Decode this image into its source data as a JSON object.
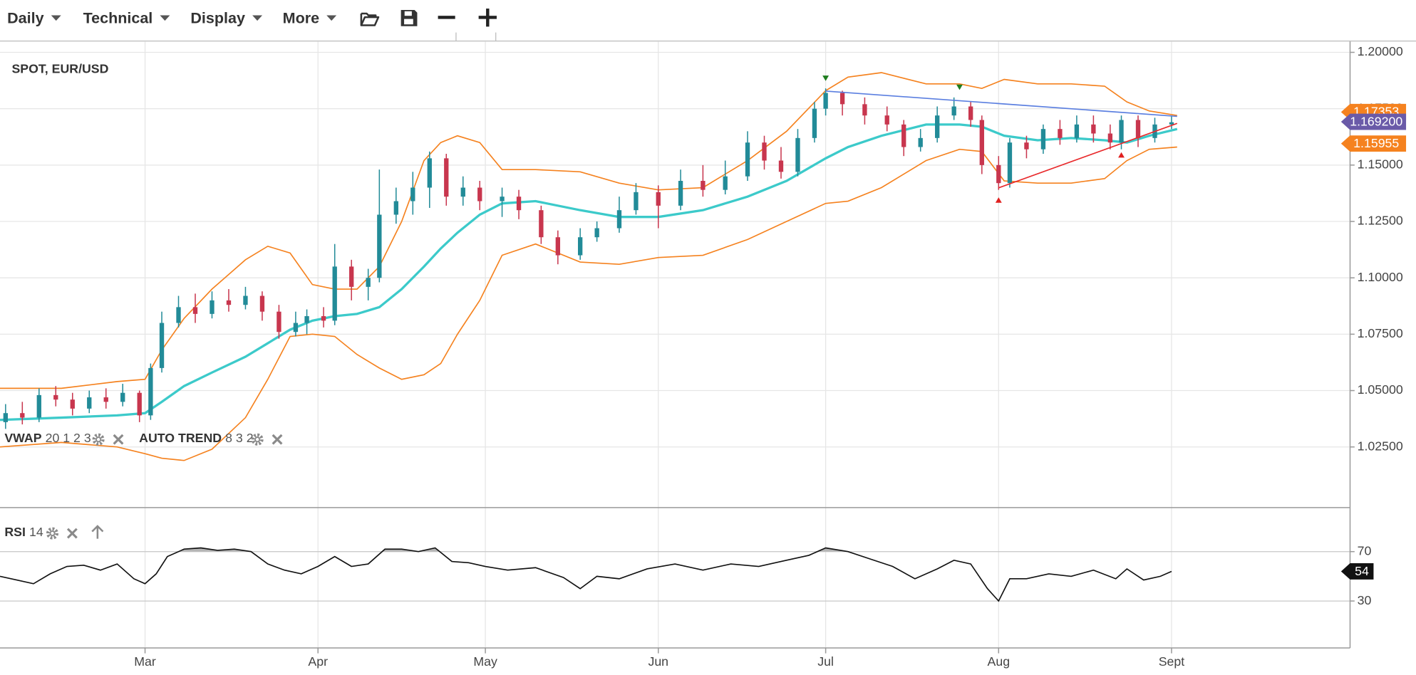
{
  "toolbar": {
    "menus": [
      "Daily",
      "Technical",
      "Display",
      "More"
    ]
  },
  "chart_data": [
    {
      "type": "candlestick",
      "title": "SPOT, EUR/USD",
      "up_color": "#228b98",
      "down_color": "#c8364e",
      "xlim": [
        34,
        276
      ],
      "xticks": [
        {
          "value": 60,
          "label": "Mar"
        },
        {
          "value": 91,
          "label": "Apr"
        },
        {
          "value": 121,
          "label": "May"
        },
        {
          "value": 152,
          "label": "Jun"
        },
        {
          "value": 182,
          "label": "Jul"
        },
        {
          "value": 213,
          "label": "Aug"
        },
        {
          "value": 244,
          "label": "Sept"
        }
      ],
      "ylim": [
        0.9983,
        1.2048
      ],
      "yticks": [
        {
          "value": 1.2,
          "label": "1.20000"
        },
        {
          "value": 1.175,
          "label": "1.17500"
        },
        {
          "value": 1.15,
          "label": "1.15000"
        },
        {
          "value": 1.125,
          "label": "1.12500"
        },
        {
          "value": 1.1,
          "label": "1.10000"
        },
        {
          "value": 1.075,
          "label": "1.07500"
        },
        {
          "value": 1.05,
          "label": "1.05000"
        },
        {
          "value": 1.025,
          "label": "1.02500"
        }
      ],
      "grid": true,
      "x": [
        35,
        38,
        41,
        44,
        47,
        50,
        53,
        56,
        59,
        61,
        63,
        66,
        69,
        72,
        75,
        78,
        81,
        84,
        87,
        89,
        92,
        94,
        97,
        100,
        102,
        105,
        108,
        111,
        114,
        117,
        120,
        124,
        127,
        131,
        134,
        138,
        141,
        145,
        148,
        152,
        156,
        160,
        164,
        168,
        171,
        174,
        177,
        180,
        182,
        185,
        189,
        193,
        196,
        199,
        202,
        205,
        208,
        210,
        213,
        215,
        218,
        221,
        224,
        227,
        230,
        233,
        235,
        238,
        241,
        244
      ],
      "open": [
        1.036,
        1.04,
        1.038,
        1.048,
        1.046,
        1.042,
        1.047,
        1.045,
        1.049,
        1.039,
        1.06,
        1.08,
        1.087,
        1.084,
        1.09,
        1.088,
        1.092,
        1.085,
        1.076,
        1.08,
        1.083,
        1.081,
        1.105,
        1.096,
        1.1,
        1.128,
        1.134,
        1.14,
        1.153,
        1.136,
        1.14,
        1.134,
        1.136,
        1.13,
        1.118,
        1.11,
        1.118,
        1.122,
        1.13,
        1.138,
        1.132,
        1.143,
        1.139,
        1.145,
        1.16,
        1.152,
        1.147,
        1.162,
        1.175,
        1.182,
        1.177,
        1.172,
        1.168,
        1.158,
        1.162,
        1.172,
        1.176,
        1.17,
        1.15,
        1.142,
        1.16,
        1.157,
        1.166,
        1.162,
        1.168,
        1.164,
        1.16,
        1.17,
        1.162,
        1.168
      ],
      "high": [
        1.044,
        1.045,
        1.051,
        1.052,
        1.049,
        1.05,
        1.051,
        1.053,
        1.05,
        1.062,
        1.085,
        1.092,
        1.093,
        1.094,
        1.095,
        1.096,
        1.094,
        1.088,
        1.085,
        1.086,
        1.087,
        1.115,
        1.108,
        1.104,
        1.148,
        1.14,
        1.147,
        1.156,
        1.155,
        1.145,
        1.143,
        1.14,
        1.139,
        1.132,
        1.121,
        1.122,
        1.125,
        1.136,
        1.142,
        1.141,
        1.148,
        1.15,
        1.152,
        1.165,
        1.163,
        1.158,
        1.166,
        1.178,
        1.184,
        1.183,
        1.18,
        1.176,
        1.17,
        1.166,
        1.176,
        1.18,
        1.178,
        1.172,
        1.154,
        1.162,
        1.163,
        1.168,
        1.17,
        1.172,
        1.172,
        1.168,
        1.172,
        1.172,
        1.171,
        1.172
      ],
      "low": [
        1.033,
        1.035,
        1.036,
        1.043,
        1.039,
        1.04,
        1.042,
        1.043,
        1.036,
        1.037,
        1.058,
        1.078,
        1.08,
        1.082,
        1.085,
        1.086,
        1.081,
        1.073,
        1.074,
        1.075,
        1.078,
        1.079,
        1.09,
        1.09,
        1.098,
        1.124,
        1.128,
        1.131,
        1.132,
        1.132,
        1.13,
        1.127,
        1.126,
        1.115,
        1.106,
        1.108,
        1.116,
        1.12,
        1.128,
        1.122,
        1.13,
        1.136,
        1.137,
        1.143,
        1.148,
        1.144,
        1.145,
        1.16,
        1.172,
        1.172,
        1.168,
        1.165,
        1.154,
        1.156,
        1.16,
        1.17,
        1.167,
        1.146,
        1.139,
        1.14,
        1.153,
        1.155,
        1.159,
        1.16,
        1.16,
        1.157,
        1.157,
        1.158,
        1.16,
        1.166
      ],
      "close": [
        1.04,
        1.038,
        1.048,
        1.046,
        1.042,
        1.047,
        1.045,
        1.049,
        1.039,
        1.06,
        1.08,
        1.087,
        1.084,
        1.09,
        1.088,
        1.092,
        1.085,
        1.076,
        1.08,
        1.083,
        1.081,
        1.105,
        1.096,
        1.1,
        1.128,
        1.134,
        1.14,
        1.153,
        1.136,
        1.14,
        1.134,
        1.136,
        1.13,
        1.118,
        1.11,
        1.118,
        1.122,
        1.13,
        1.138,
        1.132,
        1.143,
        1.139,
        1.145,
        1.16,
        1.152,
        1.147,
        1.162,
        1.175,
        1.182,
        1.177,
        1.172,
        1.168,
        1.158,
        1.162,
        1.172,
        1.176,
        1.17,
        1.15,
        1.142,
        1.16,
        1.157,
        1.166,
        1.162,
        1.168,
        1.164,
        1.16,
        1.17,
        1.162,
        1.168,
        1.169
      ],
      "overlays": [
        {
          "color": "#f5821f",
          "width": 1.3,
          "x": [
            34,
            45,
            55,
            60,
            63,
            67,
            72,
            78,
            82,
            86,
            90,
            94,
            98,
            102,
            106,
            110,
            113,
            116,
            120,
            124,
            130,
            138,
            145,
            152,
            160,
            168,
            175,
            182,
            186,
            192,
            200,
            206,
            210,
            214,
            220,
            226,
            232,
            236,
            240,
            245
          ],
          "values": [
            1.051,
            1.051,
            1.054,
            1.055,
            1.068,
            1.082,
            1.095,
            1.108,
            1.114,
            1.111,
            1.097,
            1.095,
            1.095,
            1.105,
            1.125,
            1.152,
            1.16,
            1.163,
            1.16,
            1.148,
            1.148,
            1.147,
            1.142,
            1.139,
            1.14,
            1.152,
            1.165,
            1.183,
            1.189,
            1.191,
            1.186,
            1.186,
            1.184,
            1.188,
            1.186,
            1.186,
            1.185,
            1.178,
            1.174,
            1.172
          ]
        },
        {
          "color": "#3ccaca",
          "width": 2.6,
          "x": [
            34,
            45,
            55,
            60,
            63,
            67,
            72,
            78,
            82,
            86,
            90,
            94,
            98,
            102,
            106,
            110,
            113,
            116,
            120,
            124,
            130,
            138,
            145,
            152,
            160,
            168,
            175,
            182,
            186,
            192,
            200,
            206,
            210,
            214,
            220,
            226,
            232,
            236,
            240,
            245
          ],
          "values": [
            1.037,
            1.038,
            1.039,
            1.04,
            1.045,
            1.052,
            1.058,
            1.065,
            1.071,
            1.077,
            1.081,
            1.083,
            1.084,
            1.087,
            1.095,
            1.105,
            1.113,
            1.12,
            1.128,
            1.133,
            1.134,
            1.13,
            1.127,
            1.127,
            1.13,
            1.136,
            1.143,
            1.153,
            1.158,
            1.163,
            1.168,
            1.168,
            1.167,
            1.163,
            1.161,
            1.162,
            1.161,
            1.16,
            1.163,
            1.166
          ]
        },
        {
          "color": "#f5821f",
          "width": 1.3,
          "x": [
            34,
            45,
            55,
            60,
            63,
            67,
            72,
            78,
            82,
            86,
            90,
            94,
            98,
            102,
            106,
            110,
            113,
            116,
            120,
            124,
            130,
            138,
            145,
            152,
            160,
            168,
            175,
            182,
            186,
            192,
            200,
            206,
            210,
            214,
            220,
            226,
            232,
            236,
            240,
            245
          ],
          "values": [
            1.025,
            1.027,
            1.025,
            1.022,
            1.02,
            1.019,
            1.024,
            1.038,
            1.055,
            1.074,
            1.075,
            1.074,
            1.066,
            1.06,
            1.055,
            1.057,
            1.062,
            1.075,
            1.09,
            1.11,
            1.115,
            1.107,
            1.106,
            1.109,
            1.11,
            1.117,
            1.125,
            1.133,
            1.134,
            1.14,
            1.152,
            1.157,
            1.156,
            1.143,
            1.142,
            1.142,
            1.144,
            1.152,
            1.157,
            1.158
          ]
        }
      ],
      "trend_lines": [
        {
          "color": "#5b7fe0",
          "x": [
            182,
            245
          ],
          "values": [
            1.1828,
            1.1716
          ]
        },
        {
          "color": "#e8292b",
          "x": [
            213,
            245
          ],
          "values": [
            1.1399,
            1.1685
          ]
        }
      ],
      "signals": [
        {
          "x": 182,
          "value": 1.1885,
          "direction": "down",
          "color": "#1e7d1e"
        },
        {
          "x": 206,
          "value": 1.1845,
          "direction": "down",
          "color": "#1e7d1e"
        },
        {
          "x": 213,
          "value": 1.1345,
          "direction": "up",
          "color": "#e0201f"
        },
        {
          "x": 235,
          "value": 1.1545,
          "direction": "up",
          "color": "#e0201f"
        }
      ],
      "price_labels": [
        {
          "value": 1.17353,
          "label": "1.17353",
          "color": "#f5821f"
        },
        {
          "value": 1.15955,
          "label": "1.15955",
          "color": "#f5821f"
        },
        {
          "value": 1.1692,
          "label": "1.169200",
          "color": "#6a5aa8"
        }
      ],
      "indicators": [
        {
          "name": "VWAP",
          "params": "20 1 2 3"
        },
        {
          "name": "AUTO TREND",
          "params": "8 3 2"
        }
      ]
    },
    {
      "type": "line",
      "title": "RSI",
      "params": "14",
      "color": "#111111",
      "fill_color": "#b5b5b5",
      "ylim": [
        -8,
        106
      ],
      "yticks": [
        70,
        30
      ],
      "overbought": 70,
      "x": [
        34,
        37,
        40,
        43,
        46,
        49,
        52,
        55,
        58,
        60,
        62,
        64,
        67,
        70,
        73,
        76,
        79,
        82,
        85,
        88,
        91,
        94,
        97,
        100,
        103,
        106,
        109,
        112,
        115,
        118,
        121,
        125,
        130,
        135,
        138,
        141,
        145,
        150,
        155,
        160,
        165,
        170,
        175,
        179,
        182,
        186,
        190,
        194,
        198,
        202,
        205,
        208,
        211,
        213,
        215,
        218,
        222,
        226,
        230,
        234,
        236,
        239,
        242,
        244
      ],
      "values": [
        50,
        47,
        44,
        52,
        58,
        59,
        55,
        60,
        48,
        44,
        52,
        66,
        72,
        73,
        71,
        72,
        70,
        60,
        55,
        52,
        58,
        66,
        58,
        60,
        72,
        72,
        70,
        73,
        62,
        61,
        58,
        55,
        57,
        49,
        40,
        50,
        48,
        56,
        60,
        55,
        60,
        58,
        63,
        67,
        73,
        70,
        64,
        58,
        48,
        56,
        63,
        60,
        40,
        30,
        48,
        48,
        52,
        50,
        55,
        48,
        56,
        47,
        50,
        54
      ]
    }
  ]
}
